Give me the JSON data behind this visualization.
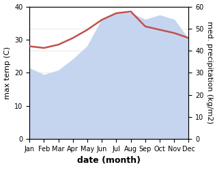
{
  "months": [
    "Jan",
    "Feb",
    "Mar",
    "Apr",
    "May",
    "Jun",
    "Jul",
    "Aug",
    "Sep",
    "Oct",
    "Nov",
    "Dec"
  ],
  "max_temp": [
    28,
    27.5,
    28.5,
    30.5,
    33,
    36,
    38,
    38.5,
    34,
    33,
    32,
    30.5
  ],
  "precipitation": [
    32,
    29,
    31,
    36,
    42,
    54,
    57,
    57,
    54,
    56,
    54,
    45
  ],
  "temp_color": "#c0504d",
  "precip_fill_color": "#c5d5f0",
  "background_color": "#ffffff",
  "ylabel_left": "max temp (C)",
  "ylabel_right": "med. precipitation (kg/m2)",
  "xlabel": "date (month)",
  "ylim_left": [
    0,
    40
  ],
  "ylim_right": [
    0,
    60
  ],
  "label_fontsize": 8,
  "tick_fontsize": 7,
  "xlabel_fontsize": 9
}
